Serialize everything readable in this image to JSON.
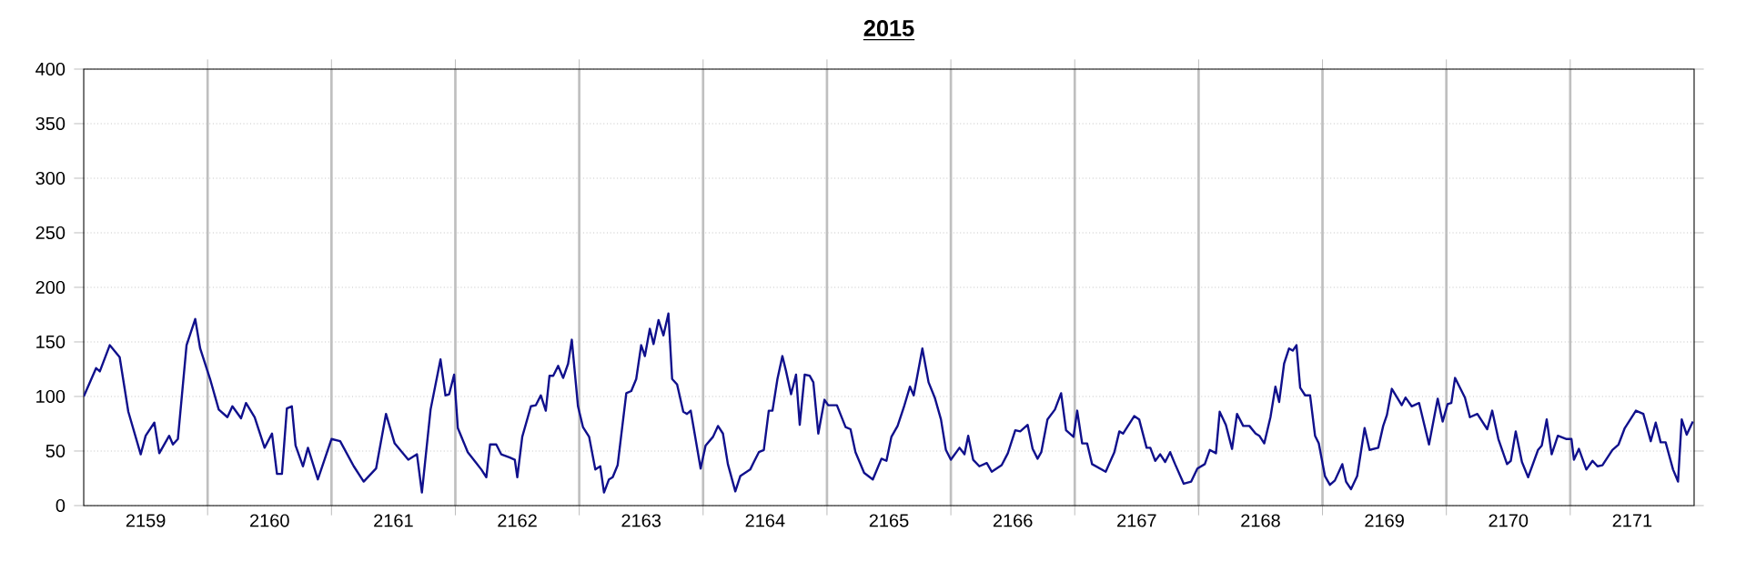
{
  "chart_data": {
    "type": "line",
    "title": "2015",
    "xlim": [
      2158.5,
      2171.5
    ],
    "xticks": [
      2159,
      2160,
      2161,
      2162,
      2163,
      2164,
      2165,
      2166,
      2167,
      2168,
      2169,
      2170,
      2171,
      {
        "value": 2159.5,
        "label": null
      },
      {
        "value": 2160.5,
        "label": null
      },
      {
        "value": 2161.5,
        "label": null
      },
      {
        "value": 2162.5,
        "label": null
      },
      {
        "value": 2163.5,
        "label": null
      },
      {
        "value": 2164.5,
        "label": null
      },
      {
        "value": 2165.5,
        "label": null
      },
      {
        "value": 2166.5,
        "label": null
      },
      {
        "value": 2167.5,
        "label": null
      },
      {
        "value": 2168.5,
        "label": null
      },
      {
        "value": 2169.5,
        "label": null
      },
      {
        "value": 2170.5,
        "label": null
      }
    ],
    "ylim": [
      0,
      400
    ],
    "yticks": [
      0,
      50,
      100,
      150,
      200,
      250,
      300,
      350,
      400
    ],
    "grid": true,
    "marker": "none",
    "line_style": "solid",
    "color": "#10108c",
    "x": [
      2158.5,
      2158.6,
      2158.63,
      2158.71,
      2158.79,
      2158.86,
      2158.96,
      2159.0,
      2159.07,
      2159.11,
      2159.19,
      2159.22,
      2159.26,
      2159.33,
      2159.4,
      2159.44,
      2159.52,
      2159.59,
      2159.66,
      2159.7,
      2159.77,
      2159.81,
      2159.88,
      2159.96,
      2160.02,
      2160.06,
      2160.1,
      2160.14,
      2160.18,
      2160.21,
      2160.27,
      2160.31,
      2160.39,
      2160.5,
      2160.57,
      2160.68,
      2160.76,
      2160.86,
      2160.94,
      2161.01,
      2161.12,
      2161.19,
      2161.23,
      2161.3,
      2161.38,
      2161.42,
      2161.45,
      2161.49,
      2161.52,
      2161.6,
      2161.71,
      2161.75,
      2161.78,
      2161.83,
      2161.87,
      2161.94,
      2161.98,
      2162.0,
      2162.04,
      2162.11,
      2162.15,
      2162.19,
      2162.23,
      2162.26,
      2162.29,
      2162.33,
      2162.37,
      2162.41,
      2162.44,
      2162.49,
      2162.53,
      2162.58,
      2162.63,
      2162.67,
      2162.7,
      2162.74,
      2162.77,
      2162.81,
      2162.88,
      2162.92,
      2162.96,
      2163.0,
      2163.03,
      2163.07,
      2163.1,
      2163.14,
      2163.18,
      2163.22,
      2163.25,
      2163.29,
      2163.34,
      2163.37,
      2163.4,
      2163.48,
      2163.52,
      2163.58,
      2163.62,
      2163.66,
      2163.7,
      2163.76,
      2163.8,
      2163.88,
      2163.91,
      2163.95,
      2163.99,
      2164.03,
      2164.06,
      2164.1,
      2164.14,
      2164.17,
      2164.21,
      2164.25,
      2164.28,
      2164.32,
      2164.36,
      2164.39,
      2164.43,
      2164.48,
      2164.51,
      2164.58,
      2164.65,
      2164.69,
      2164.73,
      2164.8,
      2164.87,
      2164.94,
      2164.98,
      2165.02,
      2165.07,
      2165.12,
      2165.17,
      2165.2,
      2165.27,
      2165.32,
      2165.37,
      2165.42,
      2165.46,
      2165.5,
      2165.57,
      2165.61,
      2165.64,
      2165.68,
      2165.73,
      2165.79,
      2165.83,
      2165.91,
      2165.96,
      2166.02,
      2166.06,
      2166.12,
      2166.16,
      2166.2,
      2166.23,
      2166.28,
      2166.34,
      2166.39,
      2166.43,
      2166.49,
      2166.52,
      2166.56,
      2166.6,
      2166.64,
      2166.75,
      2166.82,
      2166.86,
      2166.89,
      2166.98,
      2167.02,
      2167.08,
      2167.11,
      2167.15,
      2167.19,
      2167.23,
      2167.27,
      2167.31,
      2167.38,
      2167.44,
      2167.49,
      2167.55,
      2167.59,
      2167.64,
      2167.67,
      2167.72,
      2167.77,
      2167.81,
      2167.86,
      2167.91,
      2167.96,
      2167.99,
      2168.03,
      2168.08,
      2168.12,
      2168.15,
      2168.19,
      2168.23,
      2168.26,
      2168.29,
      2168.32,
      2168.36,
      2168.4,
      2168.44,
      2168.47,
      2168.52,
      2168.56,
      2168.6,
      2168.66,
      2168.69,
      2168.73,
      2168.78,
      2168.84,
      2168.88,
      2168.95,
      2168.99,
      2169.02,
      2169.06,
      2169.14,
      2169.17,
      2169.22,
      2169.28,
      2169.36,
      2169.43,
      2169.47,
      2169.51,
      2169.54,
      2169.57,
      2169.65,
      2169.69,
      2169.75,
      2169.83,
      2169.87,
      2169.92,
      2169.99,
      2170.02,
      2170.06,
      2170.11,
      2170.16,
      2170.24,
      2170.27,
      2170.31,
      2170.35,
      2170.4,
      2170.47,
      2170.51,
      2170.53,
      2170.57,
      2170.63,
      2170.68,
      2170.72,
      2170.76,
      2170.84,
      2170.89,
      2170.94,
      2171.03,
      2171.09,
      2171.15,
      2171.19,
      2171.23,
      2171.27,
      2171.33,
      2171.37,
      2171.4,
      2171.44,
      2171.49
    ],
    "values": [
      100,
      126,
      123,
      147,
      136,
      86,
      47,
      64,
      76,
      48,
      64,
      56,
      61,
      147,
      171,
      144,
      116,
      88,
      81,
      91,
      80,
      94,
      81,
      53,
      66,
      29,
      29,
      89,
      91,
      55,
      36,
      53,
      24,
      61,
      59,
      36,
      22,
      34,
      84,
      57,
      42,
      47,
      12,
      88,
      134,
      101,
      102,
      120,
      71,
      49,
      33,
      26,
      56,
      56,
      47,
      44,
      42,
      26,
      63,
      91,
      92,
      101,
      87,
      119,
      119,
      128,
      117,
      130,
      152,
      91,
      72,
      63,
      33,
      36,
      12,
      24,
      26,
      37,
      103,
      105,
      116,
      147,
      137,
      162,
      148,
      170,
      156,
      176,
      116,
      111,
      86,
      84,
      87,
      34,
      55,
      63,
      73,
      66,
      38,
      13,
      27,
      33,
      40,
      49,
      51,
      87,
      87,
      116,
      137,
      123,
      102,
      120,
      74,
      120,
      119,
      113,
      66,
      97,
      92,
      92,
      72,
      70,
      49,
      30,
      24,
      43,
      41,
      63,
      73,
      90,
      109,
      101,
      144,
      113,
      99,
      79,
      51,
      42,
      53,
      47,
      64,
      42,
      36,
      39,
      31,
      37,
      48,
      69,
      68,
      74,
      52,
      43,
      49,
      79,
      88,
      103,
      69,
      63,
      87,
      57,
      57,
      38,
      31,
      49,
      68,
      66,
      82,
      79,
      53,
      53,
      41,
      47,
      40,
      49,
      38,
      20,
      22,
      34,
      38,
      51,
      48,
      86,
      74,
      52,
      84,
      73,
      73,
      66,
      64,
      57,
      81,
      109,
      95,
      130,
      144,
      142,
      147,
      108,
      101,
      101,
      64,
      57,
      27,
      19,
      23,
      38,
      22,
      15,
      27,
      71,
      51,
      53,
      73,
      83,
      107,
      92,
      99,
      91,
      94,
      56,
      98,
      77,
      93,
      94,
      117,
      99,
      81,
      84,
      70,
      87,
      61,
      38,
      41,
      68,
      40,
      26,
      51,
      55,
      79,
      47,
      64,
      61,
      61,
      42,
      52,
      33,
      41,
      36,
      37,
      51,
      56,
      71,
      87,
      84,
      59,
      76,
      58,
      58,
      33,
      22,
      79,
      65,
      77
    ]
  }
}
